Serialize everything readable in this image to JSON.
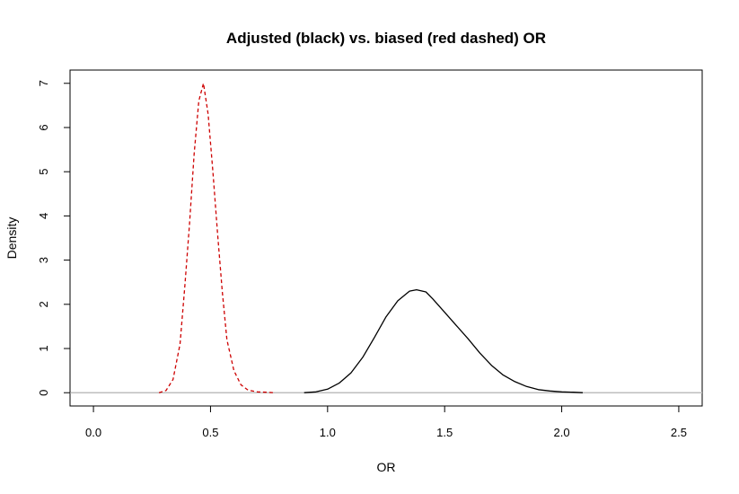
{
  "chart_data": {
    "type": "line",
    "title": "Adjusted (black) vs. biased (red dashed) OR",
    "xlabel": "OR",
    "ylabel": "Density",
    "xlim": [
      -0.1,
      2.6
    ],
    "ylim": [
      -0.3,
      7.3
    ],
    "xticks": [
      "0.0",
      "0.5",
      "1.0",
      "1.5",
      "2.0",
      "2.5"
    ],
    "yticks": [
      "0",
      "1",
      "2",
      "3",
      "4",
      "5",
      "6",
      "7"
    ],
    "baseline": {
      "y": 0,
      "color": "#bebebe"
    },
    "grid": false,
    "legend": "none",
    "series": [
      {
        "color": "#000000",
        "style": "solid",
        "x": [
          0.9,
          0.95,
          1.0,
          1.05,
          1.1,
          1.15,
          1.2,
          1.25,
          1.3,
          1.35,
          1.38,
          1.42,
          1.45,
          1.5,
          1.55,
          1.6,
          1.65,
          1.7,
          1.75,
          1.8,
          1.85,
          1.9,
          1.95,
          2.0,
          2.05,
          2.09
        ],
        "y": [
          0.0,
          0.02,
          0.08,
          0.22,
          0.45,
          0.8,
          1.25,
          1.72,
          2.08,
          2.3,
          2.33,
          2.28,
          2.12,
          1.82,
          1.52,
          1.22,
          0.9,
          0.62,
          0.4,
          0.25,
          0.14,
          0.07,
          0.04,
          0.02,
          0.01,
          0.0
        ]
      },
      {
        "color": "#cd0000",
        "style": "dashed",
        "x": [
          0.28,
          0.31,
          0.34,
          0.37,
          0.39,
          0.41,
          0.43,
          0.45,
          0.47,
          0.49,
          0.51,
          0.53,
          0.55,
          0.57,
          0.6,
          0.63,
          0.66,
          0.7,
          0.74,
          0.77
        ],
        "y": [
          0.0,
          0.05,
          0.3,
          1.1,
          2.4,
          3.8,
          5.4,
          6.6,
          7.0,
          6.3,
          5.0,
          3.6,
          2.3,
          1.2,
          0.5,
          0.18,
          0.06,
          0.02,
          0.01,
          0.0
        ]
      }
    ]
  }
}
